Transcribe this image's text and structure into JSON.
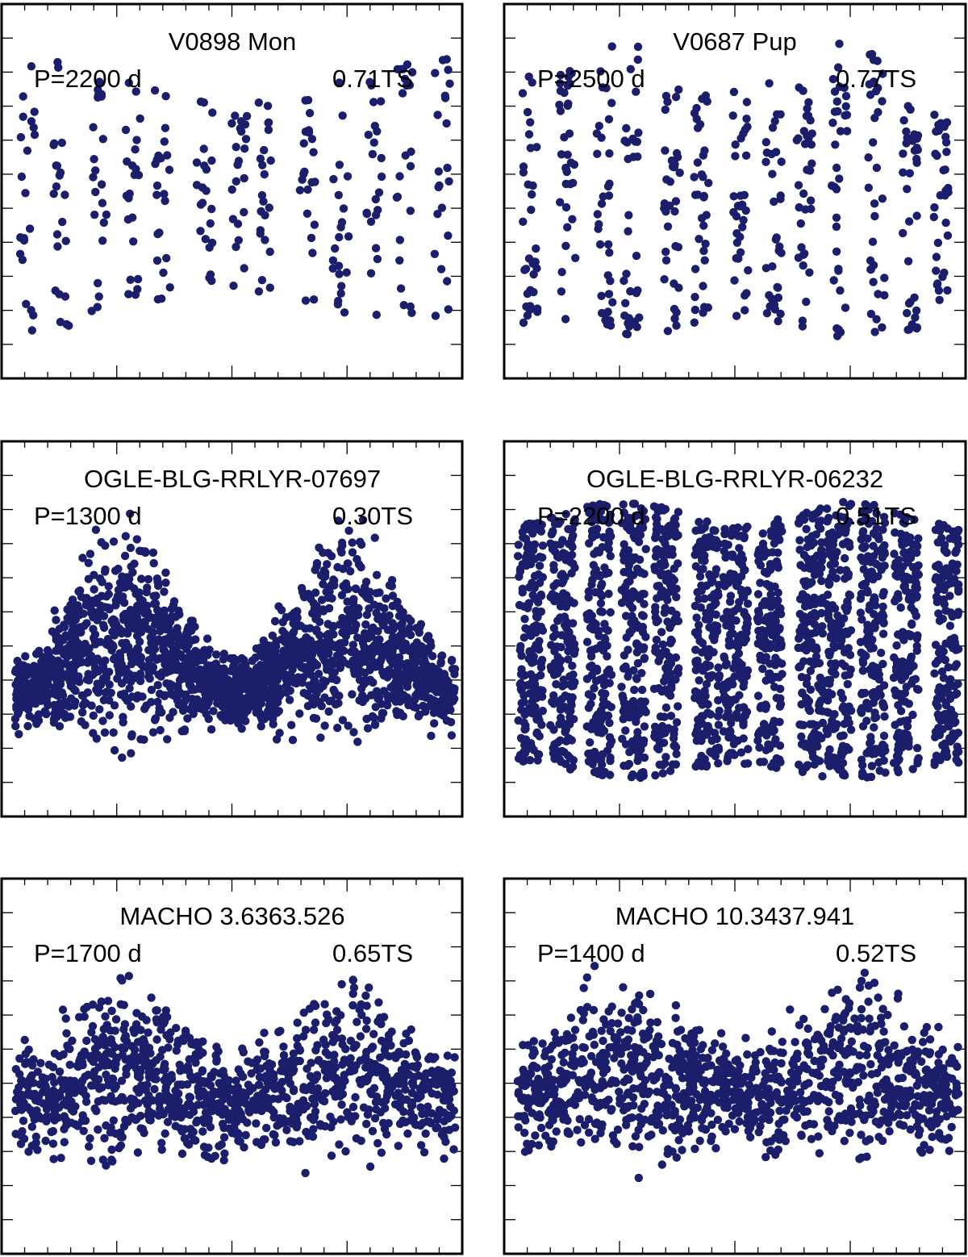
{
  "figure": {
    "point_color": "#1b1e6b",
    "frame_color": "#000000"
  },
  "chart_data": [
    {
      "type": "scatter",
      "title": "V0898 Mon",
      "period_label": "P=2200 d",
      "ts_label": "0.71TS",
      "n_cycles": 2,
      "n_strips": 13,
      "points_per_strip": 22,
      "envelope_top": [
        0.88,
        0.75,
        0.88
      ],
      "envelope_bottom": [
        0.08,
        0.22,
        0.08
      ],
      "seed": 11
    },
    {
      "type": "scatter",
      "title": "V0687 Pup",
      "period_label": "P=2500 d",
      "ts_label": "0.77TS",
      "n_cycles": 2,
      "n_strips": 13,
      "points_per_strip": 34,
      "envelope_top": [
        0.82,
        0.92,
        0.78,
        0.92,
        0.7
      ],
      "envelope_bottom": [
        0.12,
        0.09,
        0.14,
        0.09,
        0.12
      ],
      "seed": 23
    },
    {
      "type": "scatter",
      "title": "OGLE-BLG-RRLYR-07697",
      "period_label": "P=1300 d",
      "ts_label": "0.30TS",
      "n_cycles": 2,
      "n_strips": 0,
      "points_per_strip": 1900,
      "envelope_top": [
        0.45,
        0.88,
        0.45,
        0.88,
        0.45
      ],
      "envelope_bottom": [
        0.2,
        0.1,
        0.2,
        0.1,
        0.2
      ],
      "seed": 37
    },
    {
      "type": "scatter",
      "title": "OGLE-BLG-RRLYR-06232",
      "period_label": "P=2200 d",
      "ts_label": "0.51TS",
      "n_cycles": 2,
      "n_strips": 13,
      "points_per_strip": 170,
      "envelope_top": [
        0.8,
        0.86,
        0.79,
        0.86,
        0.79
      ],
      "envelope_bottom": [
        0.12,
        0.08,
        0.12,
        0.08,
        0.12
      ],
      "seed": 41
    },
    {
      "type": "scatter",
      "title": "MACHO 3.6363.526",
      "period_label": "P=1700 d",
      "ts_label": "0.65TS",
      "n_cycles": 2,
      "n_strips": 0,
      "points_per_strip": 1150,
      "envelope_top": [
        0.6,
        0.84,
        0.6,
        0.84,
        0.6
      ],
      "envelope_bottom": [
        0.2,
        0.15,
        0.2,
        0.15,
        0.2
      ],
      "seed": 53
    },
    {
      "type": "scatter",
      "title": "MACHO 10.3437.941",
      "period_label": "P=1400 d",
      "ts_label": "0.52TS",
      "n_cycles": 2,
      "n_strips": 0,
      "points_per_strip": 1150,
      "envelope_top": [
        0.62,
        0.86,
        0.62,
        0.86,
        0.62
      ],
      "envelope_bottom": [
        0.22,
        0.13,
        0.22,
        0.13,
        0.22
      ],
      "seed": 67
    }
  ]
}
